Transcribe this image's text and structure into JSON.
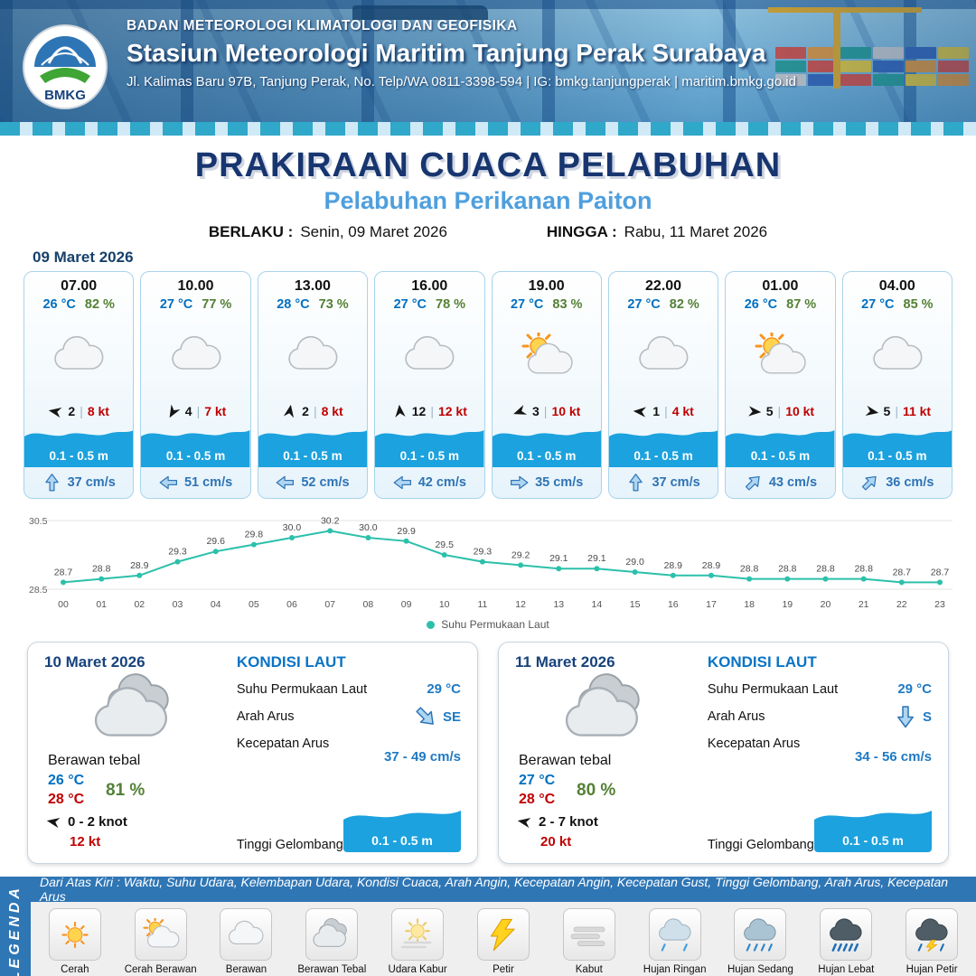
{
  "ui": {
    "separator": "|"
  },
  "header": {
    "org": "BADAN METEOROLOGI KLIMATOLOGI DAN GEOFISIKA",
    "station": "Stasiun Meteorologi Maritim Tanjung Perak Surabaya",
    "contact": "Jl. Kalimas Baru 97B, Tanjung Perak, No. Telp/WA 0811-3398-594 | IG: bmkg.tanjungperak | maritim.bmkg.go.id",
    "logo_label": "BMKG"
  },
  "title": {
    "main": "PRAKIRAAN CUACA PELABUHAN",
    "subtitle": "Pelabuhan Perikanan Paiton",
    "berlaku_label": "BERLAKU :",
    "berlaku_value": "Senin, 09 Maret 2026",
    "hingga_label": "HINGGA :",
    "hingga_value": "Rabu, 11 Maret 2026"
  },
  "forecast_date": "09 Maret 2026",
  "hourly_cards": [
    {
      "time": "07.00",
      "temp": "26 °C",
      "humidity": "82 %",
      "icon": "berawan",
      "wind_deg": 190,
      "wind": "2",
      "gust": "8 kt",
      "wave": "0.1 - 0.5 m",
      "cur_deg": -90,
      "current": "37 cm/s"
    },
    {
      "time": "10.00",
      "temp": "27 °C",
      "humidity": "77 %",
      "icon": "berawan",
      "wind_deg": 120,
      "wind": "4",
      "gust": "7 kt",
      "wave": "0.1 - 0.5 m",
      "cur_deg": 180,
      "current": "51 cm/s"
    },
    {
      "time": "13.00",
      "temp": "28 °C",
      "humidity": "73 %",
      "icon": "berawan",
      "wind_deg": -80,
      "wind": "2",
      "gust": "8 kt",
      "wave": "0.1 - 0.5 m",
      "cur_deg": 180,
      "current": "52 cm/s"
    },
    {
      "time": "16.00",
      "temp": "27 °C",
      "humidity": "78 %",
      "icon": "berawan",
      "wind_deg": -95,
      "wind": "12",
      "gust": "12 kt",
      "wave": "0.1 - 0.5 m",
      "cur_deg": 180,
      "current": "42 cm/s"
    },
    {
      "time": "19.00",
      "temp": "27 °C",
      "humidity": "83 %",
      "icon": "cerah-berawan",
      "wind_deg": 160,
      "wind": "3",
      "gust": "10 kt",
      "wave": "0.1 - 0.5 m",
      "cur_deg": 0,
      "current": "35 cm/s"
    },
    {
      "time": "22.00",
      "temp": "27 °C",
      "humidity": "82 %",
      "icon": "berawan",
      "wind_deg": 185,
      "wind": "1",
      "gust": "4 kt",
      "wave": "0.1 - 0.5 m",
      "cur_deg": -90,
      "current": "37 cm/s"
    },
    {
      "time": "01.00",
      "temp": "26 °C",
      "humidity": "87 %",
      "icon": "cerah-berawan",
      "wind_deg": 5,
      "wind": "5",
      "gust": "10 kt",
      "wave": "0.1 - 0.5 m",
      "cur_deg": -45,
      "current": "43 cm/s"
    },
    {
      "time": "04.00",
      "temp": "27 °C",
      "humidity": "85 %",
      "icon": "berawan",
      "wind_deg": 10,
      "wind": "5",
      "gust": "11 kt",
      "wave": "0.1 - 0.5 m",
      "cur_deg": -45,
      "current": "36 cm/s"
    }
  ],
  "chart_data": {
    "type": "line",
    "x": [
      "00",
      "01",
      "02",
      "03",
      "04",
      "05",
      "06",
      "07",
      "08",
      "09",
      "10",
      "11",
      "12",
      "13",
      "14",
      "15",
      "16",
      "17",
      "18",
      "19",
      "20",
      "21",
      "22",
      "23"
    ],
    "values": [
      28.7,
      28.8,
      28.9,
      29.3,
      29.6,
      29.8,
      30.0,
      30.2,
      30.0,
      29.9,
      29.5,
      29.3,
      29.2,
      29.1,
      29.1,
      29.0,
      28.9,
      28.9,
      28.8,
      28.8,
      28.8,
      28.8,
      28.7,
      28.7
    ],
    "series_name": "Suhu Permukaan Laut",
    "ylabel": "",
    "xlabel": "",
    "ylim": [
      28.5,
      30.5
    ],
    "color": "#2cc0ab",
    "legend_position": "bottom",
    "grid": false
  },
  "day_cards": [
    {
      "date": "10 Maret 2026",
      "icon": "berawan-tebal",
      "condition": "Berawan tebal",
      "temp_min": "26 °C",
      "temp_max": "28 °C",
      "humidity": "81 %",
      "wind_deg": 190,
      "wind_range": "0 - 2 knot",
      "gust": "12 kt",
      "sea": {
        "title": "KONDISI LAUT",
        "sst_label": "Suhu Permukaan Laut",
        "sst": "29 °C",
        "dir_label": "Arah Arus",
        "dir": "SE",
        "dir_deg": 45,
        "speed_label": "Kecepatan Arus",
        "speed": "37 - 49 cm/s",
        "wave_label": "Tinggi Gelombang",
        "wave": "0.1 - 0.5 m"
      }
    },
    {
      "date": "11 Maret 2026",
      "icon": "berawan-tebal",
      "condition": "Berawan tebal",
      "temp_min": "27 °C",
      "temp_max": "28 °C",
      "humidity": "80 %",
      "wind_deg": 190,
      "wind_range": "2 - 7 knot",
      "gust": "20 kt",
      "sea": {
        "title": "KONDISI LAUT",
        "sst_label": "Suhu Permukaan Laut",
        "sst": "29 °C",
        "dir_label": "Arah Arus",
        "dir": "S",
        "dir_deg": 90,
        "speed_label": "Kecepatan Arus",
        "speed": "34 - 56 cm/s",
        "wave_label": "Tinggi Gelombang",
        "wave": "0.1 - 0.5 m"
      }
    }
  ],
  "legend": {
    "side_label": "LEGENDA",
    "bar_text": "Dari Atas Kiri : Waktu, Suhu Udara, Kelembapan Udara, Kondisi Cuaca, Arah Angin, Kecepatan Angin, Kecepatan Gust, Tinggi Gelombang, Arah Arus, Kecepatan Arus",
    "items": [
      {
        "label": "Cerah",
        "icon": "cerah"
      },
      {
        "label": "Cerah Berawan",
        "icon": "cerah-berawan"
      },
      {
        "label": "Berawan",
        "icon": "berawan"
      },
      {
        "label": "Berawan Tebal",
        "icon": "berawan-tebal"
      },
      {
        "label": "Udara Kabur",
        "icon": "udara-kabur"
      },
      {
        "label": "Petir",
        "icon": "petir"
      },
      {
        "label": "Kabut",
        "icon": "kabut"
      },
      {
        "label": "Hujan Ringan",
        "icon": "hujan-ringan"
      },
      {
        "label": "Hujan Sedang",
        "icon": "hujan-sedang"
      },
      {
        "label": "Hujan Lebat",
        "icon": "hujan-lebat"
      },
      {
        "label": "Hujan Petir",
        "icon": "hujan-petir"
      }
    ]
  }
}
